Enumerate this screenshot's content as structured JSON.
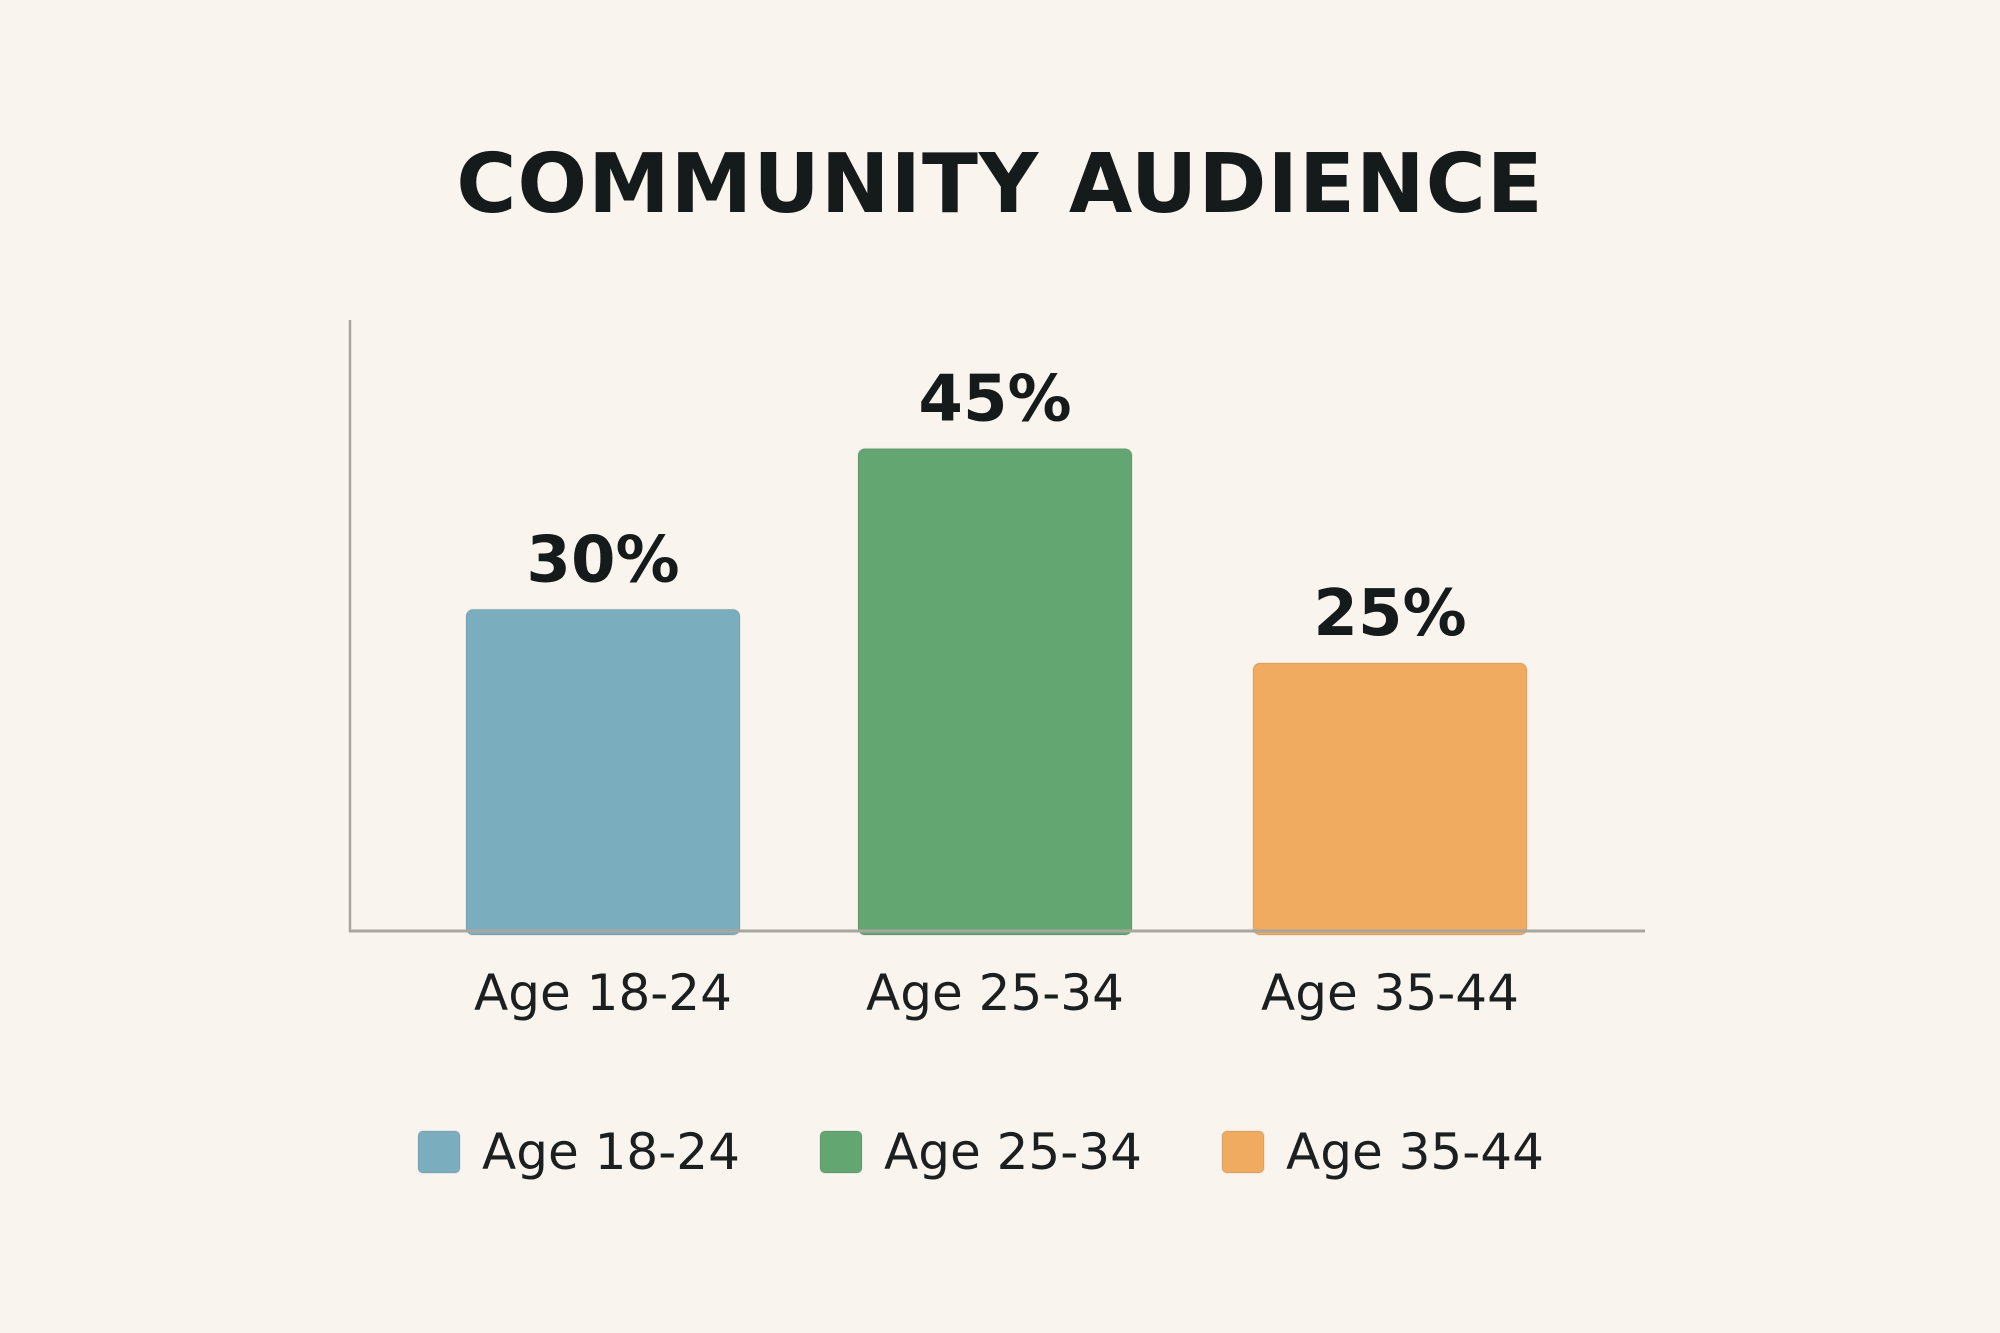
{
  "chart_data": {
    "type": "bar",
    "title": "COMMUNITY AUDIENCE",
    "categories": [
      "Age 18-24",
      "Age 25-34",
      "Age 35-44"
    ],
    "values": [
      30,
      45,
      25
    ],
    "value_labels": [
      "30%",
      "45%",
      "25%"
    ],
    "colors": [
      "#7aaebf",
      "#63a671",
      "#f0ab60"
    ],
    "xlabel": "",
    "ylabel": "",
    "ylim": [
      0,
      57
    ],
    "grid": false,
    "legend": {
      "placement": "bottom",
      "entries": [
        "Age 18-24",
        "Age 25-34",
        "Age 35-44"
      ]
    }
  }
}
